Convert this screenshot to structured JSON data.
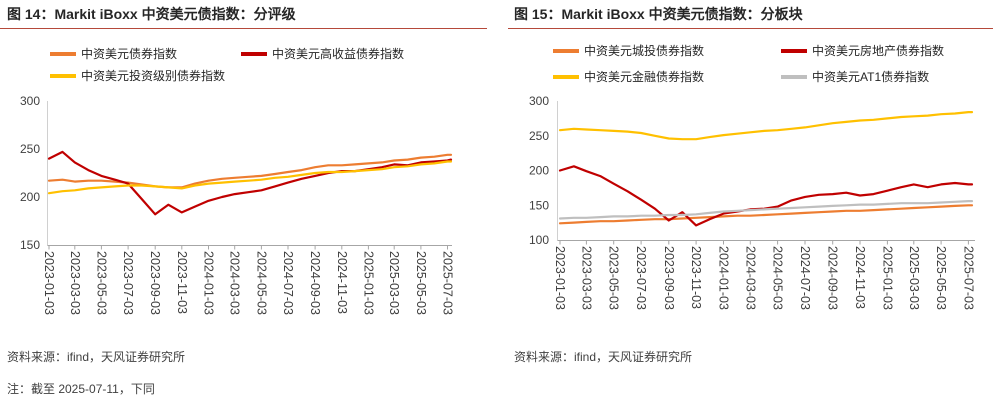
{
  "figures": [
    {
      "source": "资料来源：ifind，天风证券研究所"
    },
    {
      "source": "资料来源：ifind，天风证券研究所"
    }
  ],
  "note": "注：截至 2025-07-11，下同",
  "chart_data": [
    {
      "type": "line",
      "title": "图 14：Markit iBoxx 中资美元债指数：分评级",
      "grid": false,
      "legend": "top",
      "xlim": [
        "2023-01-03",
        "2025-07-11"
      ],
      "ylim": [
        150,
        300
      ],
      "yticks": [
        150,
        200,
        250,
        300
      ],
      "xticks": [
        "2023-01-03",
        "2023-03-03",
        "2023-05-03",
        "2023-07-03",
        "2023-09-03",
        "2023-11-03",
        "2024-01-03",
        "2024-03-03",
        "2024-05-03",
        "2024-07-03",
        "2024-09-03",
        "2024-11-03",
        "2025-01-03",
        "2025-03-03",
        "2025-05-03",
        "2025-07-03"
      ],
      "x": [
        "2023-01-03",
        "2023-02-03",
        "2023-03-03",
        "2023-04-03",
        "2023-05-03",
        "2023-06-03",
        "2023-07-03",
        "2023-08-03",
        "2023-09-03",
        "2023-10-03",
        "2023-11-03",
        "2023-12-03",
        "2024-01-03",
        "2024-02-03",
        "2024-03-03",
        "2024-04-03",
        "2024-05-03",
        "2024-06-03",
        "2024-07-03",
        "2024-08-03",
        "2024-09-03",
        "2024-10-03",
        "2024-11-03",
        "2024-12-03",
        "2025-01-03",
        "2025-02-03",
        "2025-03-03",
        "2025-04-03",
        "2025-05-03",
        "2025-06-03",
        "2025-07-03",
        "2025-07-11"
      ],
      "series": [
        {
          "name": "中资美元债券指数",
          "color": "#ed7d31",
          "values": [
            217,
            218,
            216,
            217,
            217,
            216,
            215,
            213,
            211,
            210,
            210,
            214,
            217,
            219,
            220,
            221,
            222,
            224,
            226,
            228,
            231,
            233,
            233,
            234,
            235,
            236,
            238,
            239,
            241,
            242,
            244,
            244
          ]
        },
        {
          "name": "中资美元高收益债券指数",
          "color": "#c00000",
          "values": [
            240,
            247,
            236,
            228,
            222,
            218,
            214,
            198,
            182,
            192,
            184,
            190,
            196,
            200,
            203,
            205,
            207,
            211,
            215,
            219,
            222,
            225,
            227,
            227,
            229,
            231,
            234,
            233,
            236,
            237,
            238,
            239
          ]
        },
        {
          "name": "中资美元投资级别债券指数",
          "color": "#ffc000",
          "values": [
            204,
            206,
            207,
            209,
            210,
            211,
            212,
            212,
            211,
            210,
            209,
            212,
            214,
            215,
            216,
            217,
            218,
            220,
            221,
            223,
            225,
            226,
            226,
            227,
            228,
            229,
            231,
            232,
            234,
            235,
            237,
            237
          ]
        }
      ]
    },
    {
      "type": "line",
      "title": "图 15：Markit iBoxx 中资美元债指数：分板块",
      "grid": false,
      "legend": "top",
      "xlim": [
        "2023-01-03",
        "2025-07-11"
      ],
      "ylim": [
        100,
        300
      ],
      "yticks": [
        100,
        150,
        200,
        250,
        300
      ],
      "xticks": [
        "2023-01-03",
        "2023-03-03",
        "2023-05-03",
        "2023-07-03",
        "2023-09-03",
        "2023-11-03",
        "2024-01-03",
        "2024-03-03",
        "2024-05-03",
        "2024-07-03",
        "2024-09-03",
        "2024-11-03",
        "2025-01-03",
        "2025-03-03",
        "2025-05-03",
        "2025-07-03"
      ],
      "x": [
        "2023-01-03",
        "2023-02-03",
        "2023-03-03",
        "2023-04-03",
        "2023-05-03",
        "2023-06-03",
        "2023-07-03",
        "2023-08-03",
        "2023-09-03",
        "2023-10-03",
        "2023-11-03",
        "2023-12-03",
        "2024-01-03",
        "2024-02-03",
        "2024-03-03",
        "2024-04-03",
        "2024-05-03",
        "2024-06-03",
        "2024-07-03",
        "2024-08-03",
        "2024-09-03",
        "2024-10-03",
        "2024-11-03",
        "2024-12-03",
        "2025-01-03",
        "2025-02-03",
        "2025-03-03",
        "2025-04-03",
        "2025-05-03",
        "2025-06-03",
        "2025-07-03",
        "2025-07-11"
      ],
      "series": [
        {
          "name": "中资美元城投债券指数",
          "color": "#ed7d31",
          "values": [
            124,
            125,
            126,
            127,
            127,
            128,
            129,
            130,
            130,
            131,
            132,
            133,
            134,
            135,
            135,
            136,
            137,
            138,
            139,
            140,
            141,
            142,
            142,
            143,
            144,
            145,
            146,
            147,
            148,
            149,
            150,
            150
          ]
        },
        {
          "name": "中资美元房地产债券指数",
          "color": "#c00000",
          "values": [
            200,
            206,
            199,
            192,
            181,
            170,
            158,
            145,
            128,
            140,
            121,
            130,
            138,
            141,
            144,
            145,
            148,
            157,
            162,
            165,
            166,
            168,
            164,
            166,
            171,
            176,
            180,
            176,
            180,
            182,
            180,
            180
          ]
        },
        {
          "name": "中资美元金融债券指数",
          "color": "#ffc000",
          "values": [
            258,
            260,
            259,
            258,
            257,
            256,
            254,
            250,
            246,
            245,
            245,
            248,
            251,
            253,
            255,
            257,
            258,
            260,
            262,
            265,
            268,
            270,
            272,
            273,
            275,
            277,
            278,
            279,
            281,
            282,
            284,
            284
          ]
        },
        {
          "name": "中资美元AT1债券指数",
          "color": "#bfbfbf",
          "values": [
            131,
            132,
            132,
            133,
            134,
            134,
            135,
            135,
            136,
            136,
            137,
            139,
            141,
            142,
            143,
            144,
            145,
            146,
            147,
            148,
            149,
            150,
            151,
            151,
            152,
            153,
            153,
            153,
            154,
            155,
            156,
            156
          ]
        }
      ]
    }
  ]
}
